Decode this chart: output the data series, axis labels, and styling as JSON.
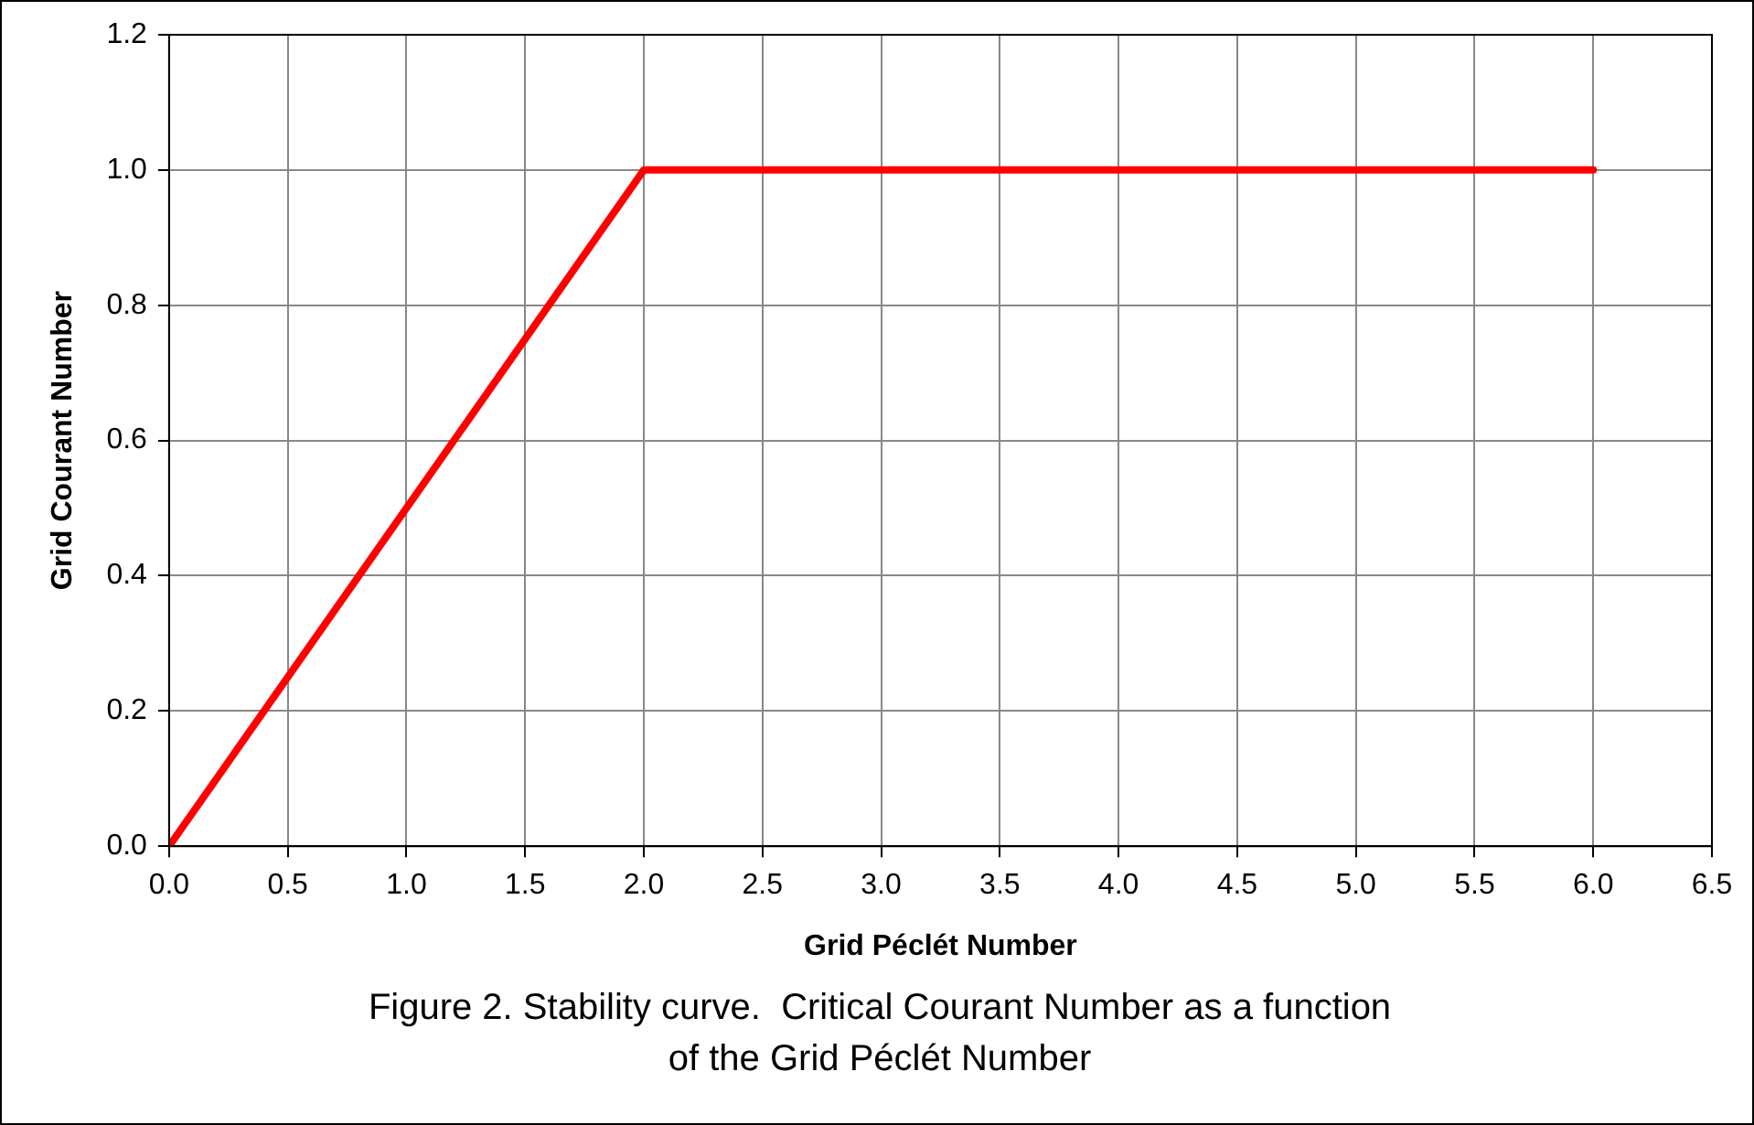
{
  "chart_data": {
    "type": "line",
    "xlabel": "Grid Péclét Number",
    "ylabel": "Grid Courant Number",
    "x": [
      0,
      2,
      6
    ],
    "series": [
      {
        "color": "#ff0000",
        "values": [
          0,
          1,
          1
        ]
      }
    ],
    "xlim": [
      0,
      6.5
    ],
    "ylim": [
      0,
      1.2
    ],
    "xticks": [
      {
        "value": 0,
        "label": "0.0"
      },
      {
        "value": 0.5,
        "label": "0.5"
      },
      {
        "value": 1,
        "label": "1.0"
      },
      {
        "value": 1.5,
        "label": "1.5"
      },
      {
        "value": 2,
        "label": "2.0"
      },
      {
        "value": 2.5,
        "label": "2.5"
      },
      {
        "value": 3,
        "label": "3.0"
      },
      {
        "value": 3.5,
        "label": "3.5"
      },
      {
        "value": 4,
        "label": "4.0"
      },
      {
        "value": 4.5,
        "label": "4.5"
      },
      {
        "value": 5,
        "label": "5.0"
      },
      {
        "value": 5.5,
        "label": "5.5"
      },
      {
        "value": 6,
        "label": "6.0"
      },
      {
        "value": 6.5,
        "label": "6.5"
      }
    ],
    "yticks": [
      {
        "value": 0,
        "label": "0.0"
      },
      {
        "value": 0.2,
        "label": "0.2"
      },
      {
        "value": 0.4,
        "label": "0.4"
      },
      {
        "value": 0.6,
        "label": "0.6"
      },
      {
        "value": 0.8,
        "label": "0.8"
      },
      {
        "value": 1,
        "label": "1.0"
      },
      {
        "value": 1.2,
        "label": "1.2"
      }
    ],
    "grid": true,
    "legend": false,
    "marker": "none",
    "line_style": "solid",
    "annotations": [
      "Figure 2. Stability curve.  Critical Courant Number as a function of the Grid Péclét Number"
    ]
  }
}
